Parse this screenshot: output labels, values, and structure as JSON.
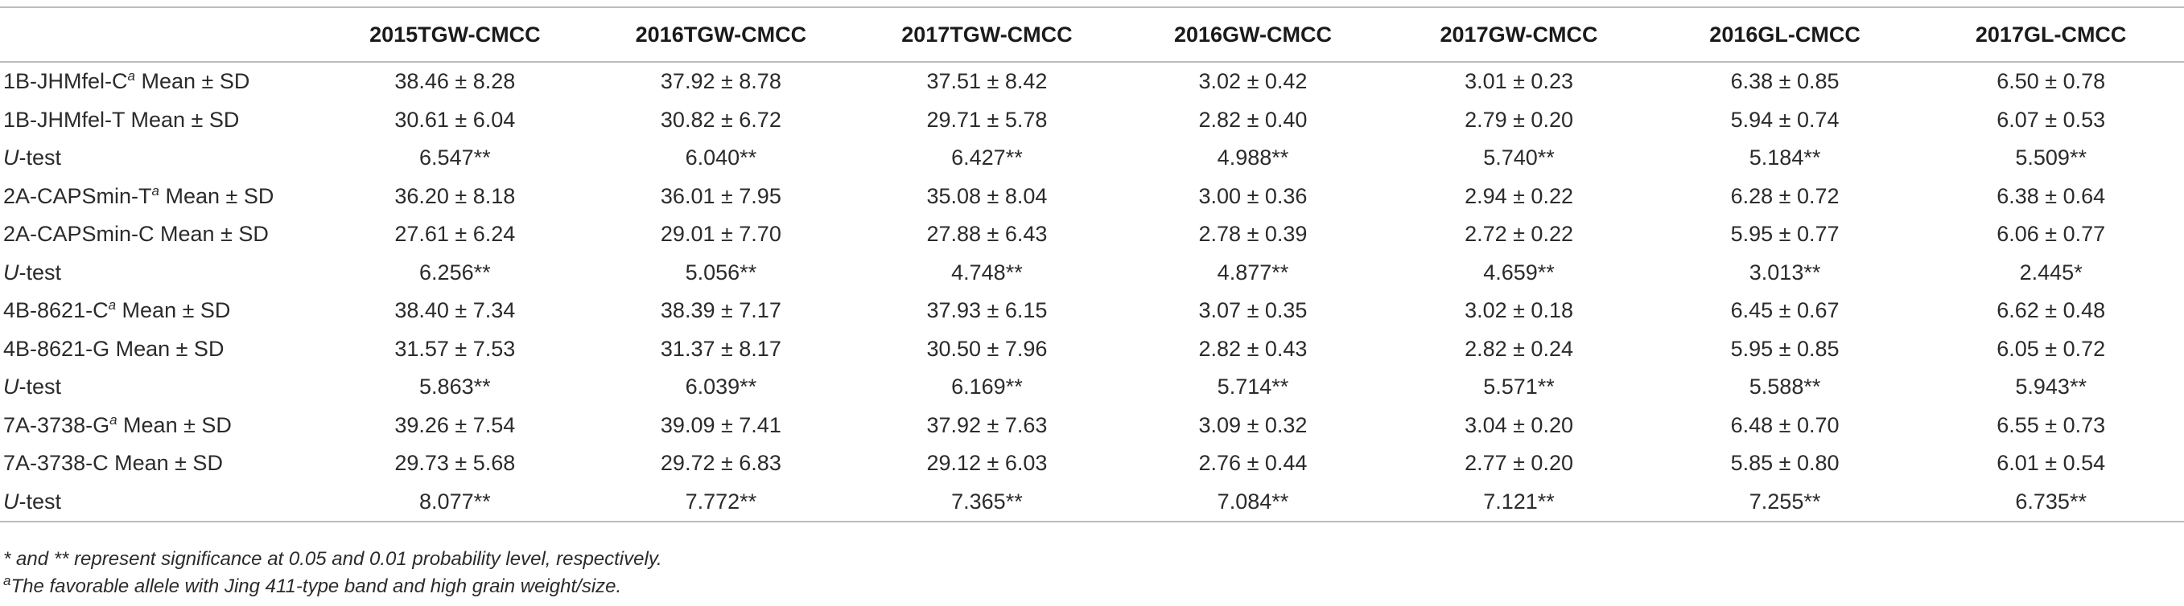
{
  "columns": [
    "",
    "2015TGW-CMCC",
    "2016TGW-CMCC",
    "2017TGW-CMCC",
    "2016GW-CMCC",
    "2017GW-CMCC",
    "2016GL-CMCC",
    "2017GL-CMCC"
  ],
  "rows": [
    {
      "pre": "1B-JHMfel-C",
      "sup": "a",
      "post": " Mean ± SD",
      "italic": false,
      "cells": [
        "38.46 ± 8.28",
        "37.92 ± 8.78",
        "37.51 ± 8.42",
        "3.02 ± 0.42",
        "3.01 ± 0.23",
        "6.38 ± 0.85",
        "6.50 ± 0.78"
      ]
    },
    {
      "pre": "1B-JHMfel-T Mean ± SD",
      "sup": "",
      "post": "",
      "italic": false,
      "cells": [
        "30.61 ± 6.04",
        "30.82 ± 6.72",
        "29.71 ± 5.78",
        "2.82 ± 0.40",
        "2.79 ± 0.20",
        "5.94 ± 0.74",
        "6.07 ± 0.53"
      ]
    },
    {
      "pre": "U",
      "sup": "",
      "post": "-test",
      "italic": true,
      "cells": [
        "6.547**",
        "6.040**",
        "6.427**",
        "4.988**",
        "5.740**",
        "5.184**",
        "5.509**"
      ]
    },
    {
      "pre": "2A-CAPSmin-T",
      "sup": "a",
      "post": " Mean ± SD",
      "italic": false,
      "cells": [
        "36.20 ± 8.18",
        "36.01 ± 7.95",
        "35.08 ± 8.04",
        "3.00 ± 0.36",
        "2.94 ± 0.22",
        "6.28 ± 0.72",
        "6.38 ± 0.64"
      ]
    },
    {
      "pre": "2A-CAPSmin-C Mean ± SD",
      "sup": "",
      "post": "",
      "italic": false,
      "cells": [
        "27.61 ± 6.24",
        "29.01 ± 7.70",
        "27.88 ± 6.43",
        "2.78 ± 0.39",
        "2.72 ± 0.22",
        "5.95 ± 0.77",
        "6.06 ± 0.77"
      ]
    },
    {
      "pre": "U",
      "sup": "",
      "post": "-test",
      "italic": true,
      "cells": [
        "6.256**",
        "5.056**",
        "4.748**",
        "4.877**",
        "4.659**",
        "3.013**",
        "2.445*"
      ]
    },
    {
      "pre": "4B-8621-C",
      "sup": "a",
      "post": " Mean ± SD",
      "italic": false,
      "cells": [
        "38.40 ± 7.34",
        "38.39 ± 7.17",
        "37.93 ± 6.15",
        "3.07 ± 0.35",
        "3.02 ± 0.18",
        "6.45 ± 0.67",
        "6.62 ± 0.48"
      ]
    },
    {
      "pre": "4B-8621-G Mean ± SD",
      "sup": "",
      "post": "",
      "italic": false,
      "cells": [
        "31.57 ± 7.53",
        "31.37 ± 8.17",
        "30.50 ± 7.96",
        "2.82 ± 0.43",
        "2.82 ± 0.24",
        "5.95 ± 0.85",
        "6.05 ± 0.72"
      ]
    },
    {
      "pre": "U",
      "sup": "",
      "post": "-test",
      "italic": true,
      "cells": [
        "5.863**",
        "6.039**",
        "6.169**",
        "5.714**",
        "5.571**",
        "5.588**",
        "5.943**"
      ]
    },
    {
      "pre": "7A-3738-G",
      "sup": "a",
      "post": " Mean ± SD",
      "italic": false,
      "cells": [
        "39.26 ± 7.54",
        "39.09 ± 7.41",
        "37.92 ± 7.63",
        "3.09 ± 0.32",
        "3.04 ± 0.20",
        "6.48 ± 0.70",
        "6.55 ± 0.73"
      ]
    },
    {
      "pre": "7A-3738-C Mean ± SD",
      "sup": "",
      "post": "",
      "italic": false,
      "cells": [
        "29.73 ± 5.68",
        "29.72 ± 6.83",
        "29.12 ± 6.03",
        "2.76 ± 0.44",
        "2.77 ± 0.20",
        "5.85 ± 0.80",
        "6.01 ± 0.54"
      ]
    },
    {
      "pre": "U",
      "sup": "",
      "post": "-test",
      "italic": true,
      "cells": [
        "8.077**",
        "7.772**",
        "7.365**",
        "7.084**",
        "7.121**",
        "7.255**",
        "6.735**"
      ]
    }
  ],
  "footnotes": {
    "note1": "* and ** represent significance at 0.05 and 0.01 probability level, respectively.",
    "note2_mark": "a",
    "note2_text": "The favorable allele with Jing 411-type band and high grain weight/size."
  }
}
